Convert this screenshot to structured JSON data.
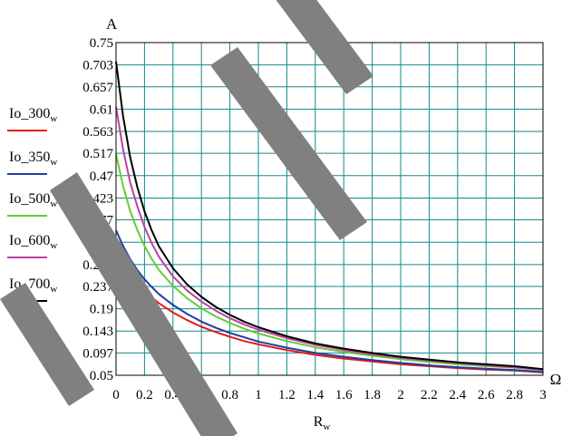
{
  "chart_data": {
    "type": "line",
    "ylabel": "A",
    "xlabel": "R",
    "xlabel_sub": "w",
    "x_unit": "Ω",
    "xlim": [
      0,
      3
    ],
    "ylim": [
      0.05,
      0.75
    ],
    "x_ticks": [
      "0",
      "0.2",
      "0.4",
      "0.6",
      "0.8",
      "1",
      "1.2",
      "1.4",
      "1.6",
      "1.8",
      "2",
      "2.2",
      "2.4",
      "2.6",
      "2.8",
      "3"
    ],
    "y_ticks": [
      "0.05",
      "0.097",
      "0.143",
      "0.19",
      "0.237",
      "0.283",
      "0.33",
      "0.377",
      "0.423",
      "0.47",
      "0.517",
      "0.563",
      "0.61",
      "0.657",
      "0.703",
      "0.75"
    ],
    "grid": true,
    "legend_placement": "left",
    "x": [
      0,
      0.05,
      0.1,
      0.15,
      0.2,
      0.25,
      0.3,
      0.4,
      0.5,
      0.6,
      0.7,
      0.8,
      0.9,
      1.0,
      1.2,
      1.4,
      1.6,
      1.8,
      2.0,
      2.2,
      2.4,
      2.6,
      2.8,
      3.0
    ],
    "series": [
      {
        "name": "Io_300",
        "name_sub": "w",
        "color": "#e41a1c",
        "values": [
          0.305,
          0.28,
          0.26,
          0.242,
          0.227,
          0.214,
          0.202,
          0.182,
          0.166,
          0.152,
          0.141,
          0.131,
          0.122,
          0.115,
          0.103,
          0.093,
          0.085,
          0.079,
          0.073,
          0.069,
          0.065,
          0.062,
          0.06,
          0.056
        ]
      },
      {
        "name": "Io_350",
        "name_sub": "w",
        "color": "#1f3f9f",
        "values": [
          0.355,
          0.322,
          0.294,
          0.271,
          0.252,
          0.236,
          0.221,
          0.198,
          0.179,
          0.163,
          0.15,
          0.139,
          0.13,
          0.121,
          0.108,
          0.097,
          0.089,
          0.082,
          0.076,
          0.071,
          0.067,
          0.064,
          0.061,
          0.057
        ]
      },
      {
        "name": "Io_500",
        "name_sub": "w",
        "color": "#66cc33",
        "values": [
          0.515,
          0.448,
          0.395,
          0.355,
          0.322,
          0.295,
          0.272,
          0.238,
          0.212,
          0.191,
          0.174,
          0.16,
          0.148,
          0.138,
          0.122,
          0.109,
          0.099,
          0.091,
          0.084,
          0.078,
          0.073,
          0.069,
          0.066,
          0.061
        ]
      },
      {
        "name": "Io_600",
        "name_sub": "w",
        "color": "#c040a0",
        "values": [
          0.615,
          0.525,
          0.455,
          0.405,
          0.362,
          0.328,
          0.3,
          0.258,
          0.228,
          0.205,
          0.186,
          0.17,
          0.157,
          0.146,
          0.128,
          0.114,
          0.103,
          0.094,
          0.087,
          0.081,
          0.076,
          0.071,
          0.067,
          0.062
        ]
      },
      {
        "name": "Io_700",
        "name_sub": "w",
        "color": "#000000",
        "values": [
          0.71,
          0.595,
          0.508,
          0.445,
          0.395,
          0.355,
          0.322,
          0.275,
          0.241,
          0.215,
          0.194,
          0.177,
          0.163,
          0.151,
          0.132,
          0.117,
          0.106,
          0.097,
          0.089,
          0.083,
          0.077,
          0.073,
          0.069,
          0.063
        ]
      }
    ]
  }
}
